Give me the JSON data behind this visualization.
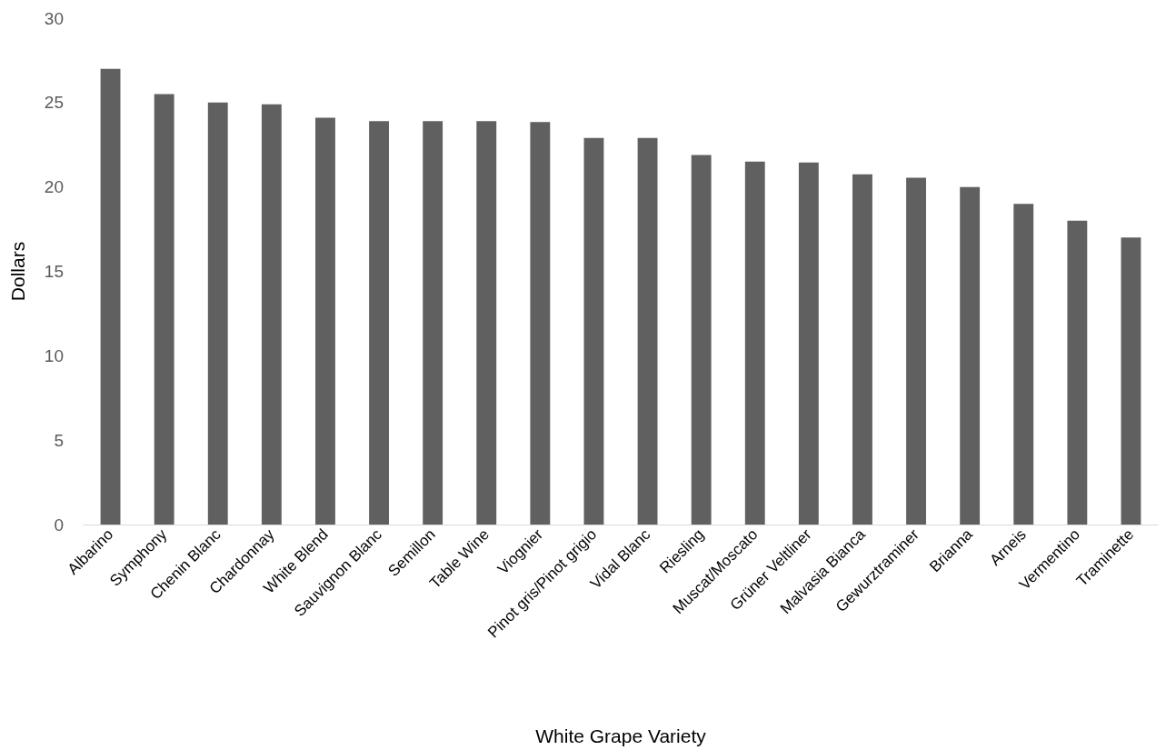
{
  "chart_data": {
    "type": "bar",
    "xlabel": "White Grape Variety",
    "ylabel": "Dollars",
    "categories": [
      "Albarino",
      "Symphony",
      "Chenin Blanc",
      "Chardonnay",
      "White Blend",
      "Sauvignon Blanc",
      "Semillon",
      "Table Wine",
      "Viognier",
      "Pinot gris/Pinot grigio",
      "Vidal Blanc",
      "Riesling",
      "Muscat/Moscato",
      "Grüner Veltliner",
      "Malvasia Bianca",
      "Gewurztraminer",
      "Brianna",
      "Arneis",
      "Vermentino",
      "Traminette"
    ],
    "values": [
      27,
      25.5,
      25,
      24.9,
      24.1,
      23.9,
      23.9,
      23.9,
      23.85,
      22.9,
      22.9,
      21.9,
      21.5,
      21.45,
      20.75,
      20.55,
      20,
      19,
      18,
      17
    ],
    "color": "#606060",
    "ylim": [
      0,
      30
    ],
    "yticks": [
      0,
      5,
      10,
      15,
      20,
      25,
      30
    ],
    "grid": false
  }
}
